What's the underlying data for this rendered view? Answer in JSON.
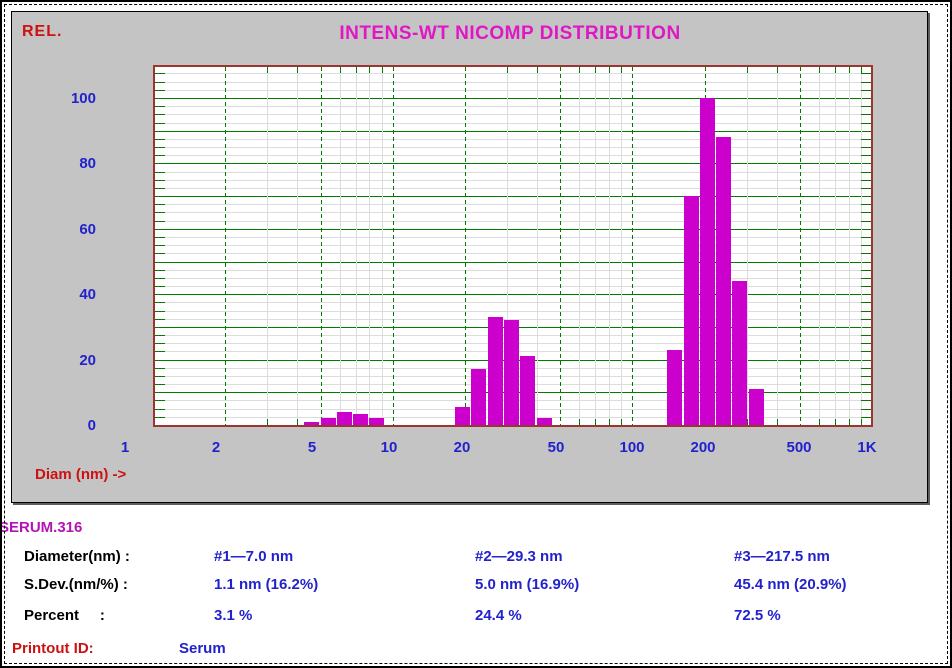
{
  "header": {
    "rel_label": "REL.",
    "title": "INTENS-WT NICOMP DISTRIBUTION"
  },
  "axes": {
    "y_ticks": [
      100,
      80,
      60,
      40,
      20,
      0
    ],
    "x_ticks": [
      "1",
      "2",
      "5",
      "10",
      "20",
      "50",
      "100",
      "200",
      "500",
      "1K"
    ],
    "x_axis_label": "Diam (nm) ->"
  },
  "chart_data": {
    "type": "bar",
    "title": "INTENS-WT NICOMP DISTRIBUTION",
    "xlabel": "Diam (nm)",
    "ylabel": "REL.",
    "x_scale": "log",
    "xlim": [
      1,
      1000
    ],
    "ylim": [
      0,
      110
    ],
    "x_ticks": [
      "1",
      "2",
      "5",
      "10",
      "20",
      "50",
      "100",
      "200",
      "500",
      "1K"
    ],
    "y_ticks": [
      100,
      80,
      60,
      40,
      20,
      0
    ],
    "grid": "green major lines every 10 units and at log ticks; light gray minor lines",
    "bars": [
      {
        "diameter_nm": 4.6,
        "rel_intensity": 1
      },
      {
        "diameter_nm": 5.4,
        "rel_intensity": 2
      },
      {
        "diameter_nm": 6.3,
        "rel_intensity": 4
      },
      {
        "diameter_nm": 7.4,
        "rel_intensity": 3.5
      },
      {
        "diameter_nm": 8.6,
        "rel_intensity": 2
      },
      {
        "diameter_nm": 19.6,
        "rel_intensity": 5.5
      },
      {
        "diameter_nm": 23.0,
        "rel_intensity": 17
      },
      {
        "diameter_nm": 26.9,
        "rel_intensity": 33
      },
      {
        "diameter_nm": 31.5,
        "rel_intensity": 32
      },
      {
        "diameter_nm": 36.8,
        "rel_intensity": 21
      },
      {
        "diameter_nm": 43.0,
        "rel_intensity": 2
      },
      {
        "diameter_nm": 151,
        "rel_intensity": 23
      },
      {
        "diameter_nm": 177,
        "rel_intensity": 70
      },
      {
        "diameter_nm": 206,
        "rel_intensity": 100
      },
      {
        "diameter_nm": 241,
        "rel_intensity": 88
      },
      {
        "diameter_nm": 282,
        "rel_intensity": 44
      },
      {
        "diameter_nm": 330,
        "rel_intensity": 11
      }
    ],
    "peaks": [
      {
        "name": "#1",
        "mean_nm": 7.0,
        "sdev": "1.1 nm (16.2%)",
        "percent": 3.1
      },
      {
        "name": "#2",
        "mean_nm": 29.3,
        "sdev": "5.0 nm (16.9%)",
        "percent": 24.4
      },
      {
        "name": "#3",
        "mean_nm": 217.5,
        "sdev": "45.4 nm (20.9%)",
        "percent": 72.5
      }
    ]
  },
  "results": {
    "sample_id": "SERUM.316",
    "rows": [
      {
        "label": "Diameter(nm) :",
        "values": [
          "#1—7.0 nm",
          "#2—29.3 nm",
          "#3—217.5 nm"
        ]
      },
      {
        "label": "S.Dev.(nm/%) :",
        "values": [
          "1.1 nm (16.2%)",
          "5.0 nm (16.9%)",
          "45.4 nm (20.9%)"
        ]
      },
      {
        "label": "Percent     :",
        "values": [
          "3.1 %",
          "24.4 %",
          "72.5 %"
        ]
      }
    ],
    "printout": {
      "label": "Printout ID:",
      "value": "Serum"
    }
  },
  "colors": {
    "panel_gray": "#c4c4c4",
    "bar_magenta": "#cc00cc",
    "title_magenta": "#e018c4",
    "sample_magenta": "#b512b5",
    "axis_blue": "#2222cc",
    "label_red": "#cc1111",
    "grid_green": "#007b00",
    "grid_minor_gray": "#dcdcdc",
    "plot_border_maroon": "#9c352f"
  }
}
